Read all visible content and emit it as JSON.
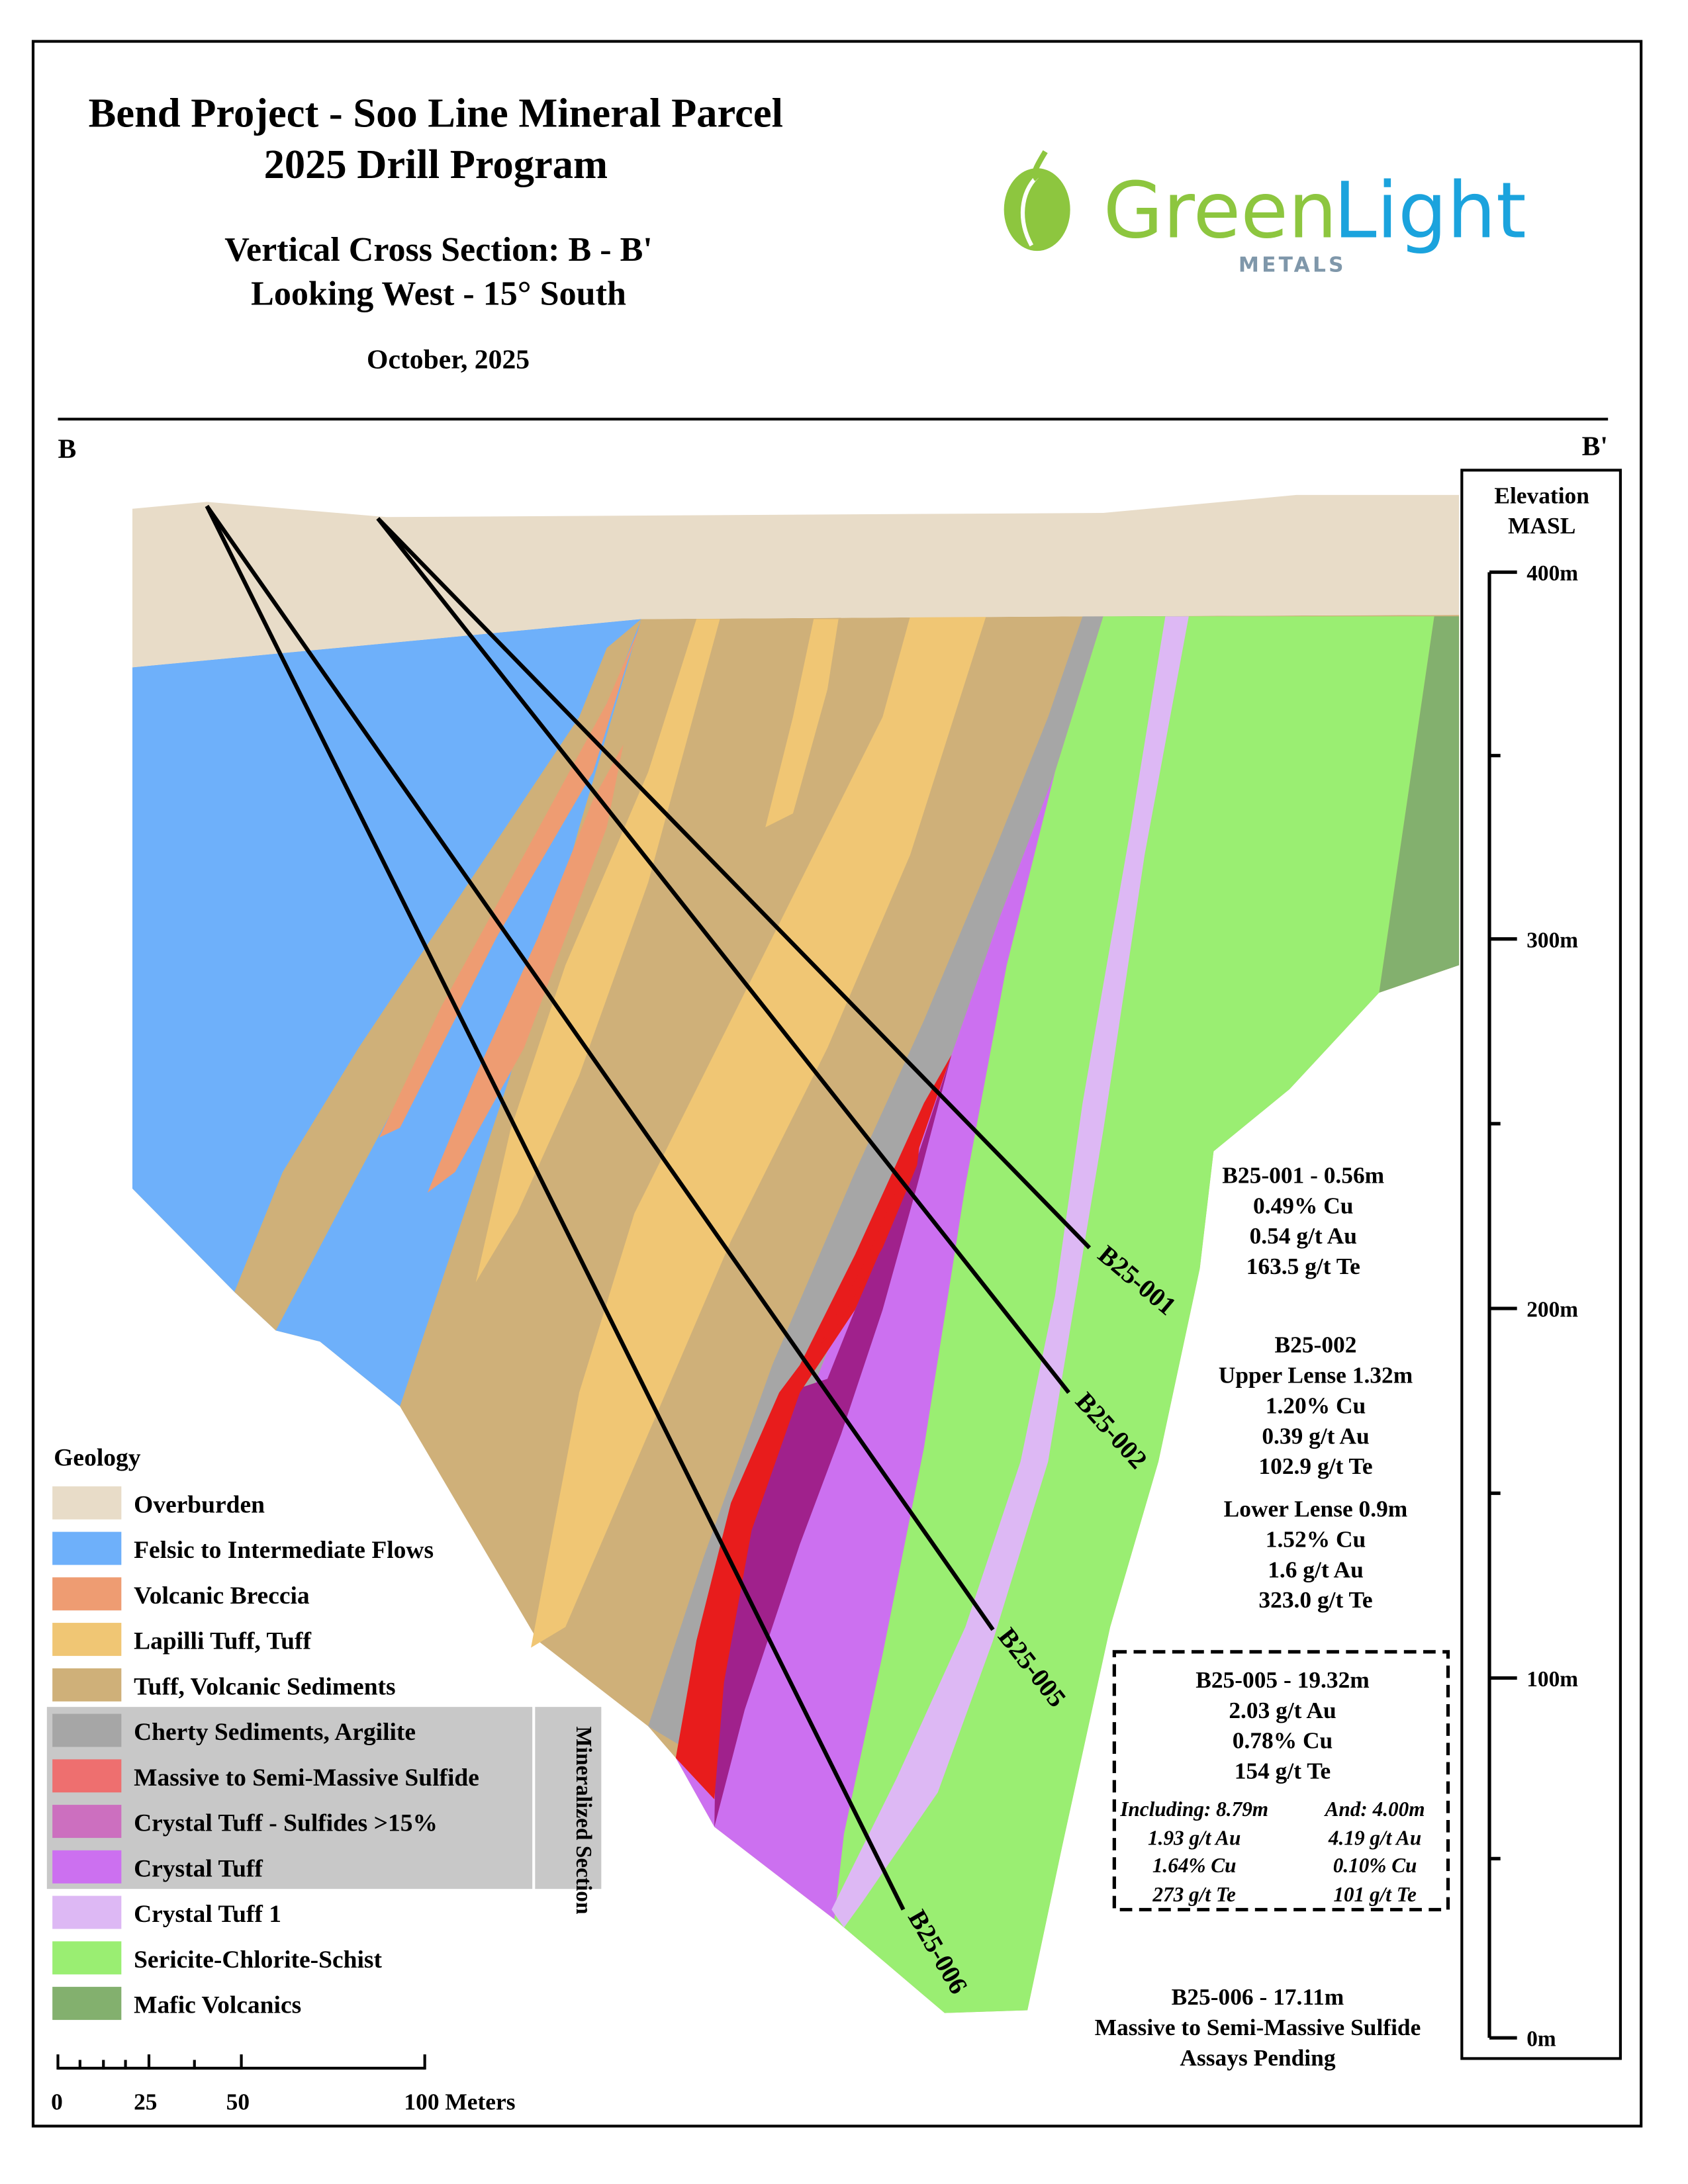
{
  "header": {
    "title_line1": "Bend Project - Soo Line Mineral Parcel",
    "title_line2": "2025 Drill Program",
    "section_line1": "Vertical Cross Section: B - B'",
    "section_line2": "Looking West - 15° South",
    "date": "October, 2025"
  },
  "logo": {
    "word_green": "Green",
    "word_blue": "Light",
    "sub": "METALS",
    "green": "#8DC63F",
    "blue": "#1BA3DD",
    "grey": "#7F97AA"
  },
  "section_ends": {
    "left": "B",
    "right": "B'"
  },
  "elevation": {
    "title_line1": "Elevation",
    "title_line2": "MASL",
    "ticks": [
      "400m",
      "300m",
      "200m",
      "100m",
      "0m"
    ]
  },
  "drillholes": [
    "B25-001",
    "B25-002",
    "B25-005",
    "B25-006"
  ],
  "annotations": {
    "b001": [
      "B25-001 - 0.56m",
      "0.49% Cu",
      "0.54 g/t Au",
      "163.5 g/t Te"
    ],
    "b002": [
      "B25-002",
      "Upper Lense 1.32m",
      "1.20% Cu",
      "0.39 g/t Au",
      "102.9 g/t Te",
      "Lower Lense 0.9m",
      "1.52% Cu",
      "1.6 g/t Au",
      "323.0 g/t Te"
    ],
    "b005": {
      "main": [
        "B25-005 - 19.32m",
        "2.03 g/t Au",
        "0.78% Cu",
        "154 g/t Te"
      ],
      "including": [
        "Including: 8.79m",
        "1.93 g/t Au",
        "1.64% Cu",
        "273 g/t Te"
      ],
      "and": [
        "And: 4.00m",
        "4.19 g/t Au",
        "0.10% Cu",
        "101 g/t Te"
      ]
    },
    "b006": [
      "B25-006 - 17.11m",
      "Massive to Semi-Massive Sulfide",
      "Assays Pending"
    ]
  },
  "legend": {
    "title": "Geology",
    "items": [
      {
        "label": "Overburden",
        "color": "#E8DCC8"
      },
      {
        "label": "Felsic to Intermediate Flows",
        "color": "#6EB0FA"
      },
      {
        "label": "Volcanic Breccia",
        "color": "#EE9C72"
      },
      {
        "label": "Lapilli Tuff, Tuff",
        "color": "#F0C674"
      },
      {
        "label": "Tuff, Volcanic Sediments",
        "color": "#CFB079"
      },
      {
        "label": "Cherty Sediments, Argilite",
        "color": "#A6A6A6"
      },
      {
        "label": "Massive to Semi-Massive Sulfide",
        "color": "#EE6F6F"
      },
      {
        "label": "Crystal Tuff - Sulfides >15%",
        "color": "#CC6FBF"
      },
      {
        "label": "Crystal Tuff",
        "color": "#CC70F0"
      },
      {
        "label": "Crystal Tuff 1",
        "color": "#DDB8F4"
      },
      {
        "label": "Sericite-Chlorite-Schist",
        "color": "#9AEE72"
      },
      {
        "label": "Mafic Volcanics",
        "color": "#83B06E"
      }
    ],
    "group_label": "Mineralized Section"
  },
  "scale_bar": {
    "labels": [
      "0",
      "25",
      "50",
      "100 Meters"
    ]
  }
}
